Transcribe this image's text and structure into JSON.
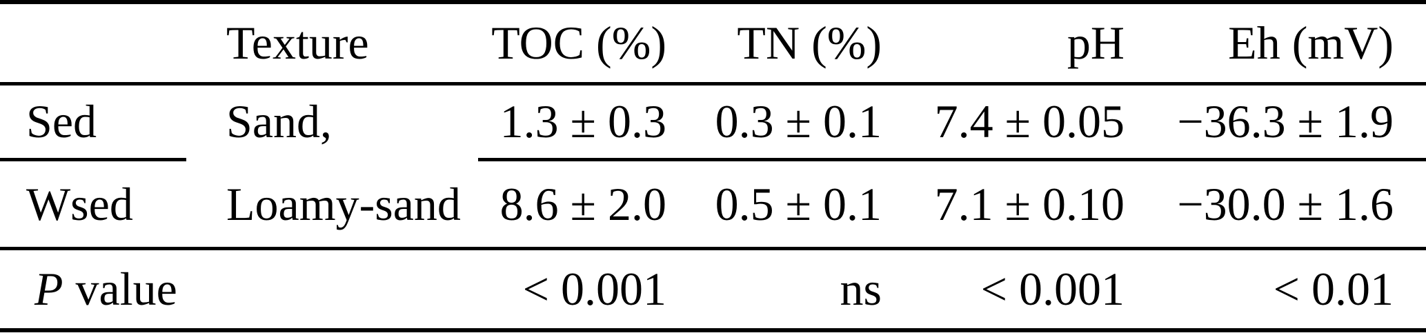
{
  "meta": {
    "background_color": "#ffffff",
    "text_color": "#000000",
    "rule_color": "#000000"
  },
  "table": {
    "columns": [
      {
        "label": ""
      },
      {
        "label": "Texture"
      },
      {
        "label": "TOC (%)"
      },
      {
        "label": "TN (%)"
      },
      {
        "label": "pH"
      },
      {
        "label": "Eh (mV)"
      }
    ],
    "rows": [
      {
        "label": "Sed",
        "texture": "Sand,",
        "toc": "1.3 ± 0.3",
        "tn": "0.3 ± 0.1",
        "ph": "7.4 ± 0.05",
        "eh": "−36.3 ± 1.9"
      },
      {
        "label": "Wsed",
        "texture": "Loamy-sand",
        "toc": "8.6 ± 2.0",
        "tn": "0.5 ± 0.1",
        "ph": "7.1 ± 0.10",
        "eh": "−30.0 ± 1.6"
      },
      {
        "label_p": "P",
        "label_rest": "value",
        "texture": "",
        "toc": "< 0.001",
        "tn": "ns",
        "ph": "< 0.001",
        "eh": "< 0.01"
      }
    ]
  }
}
